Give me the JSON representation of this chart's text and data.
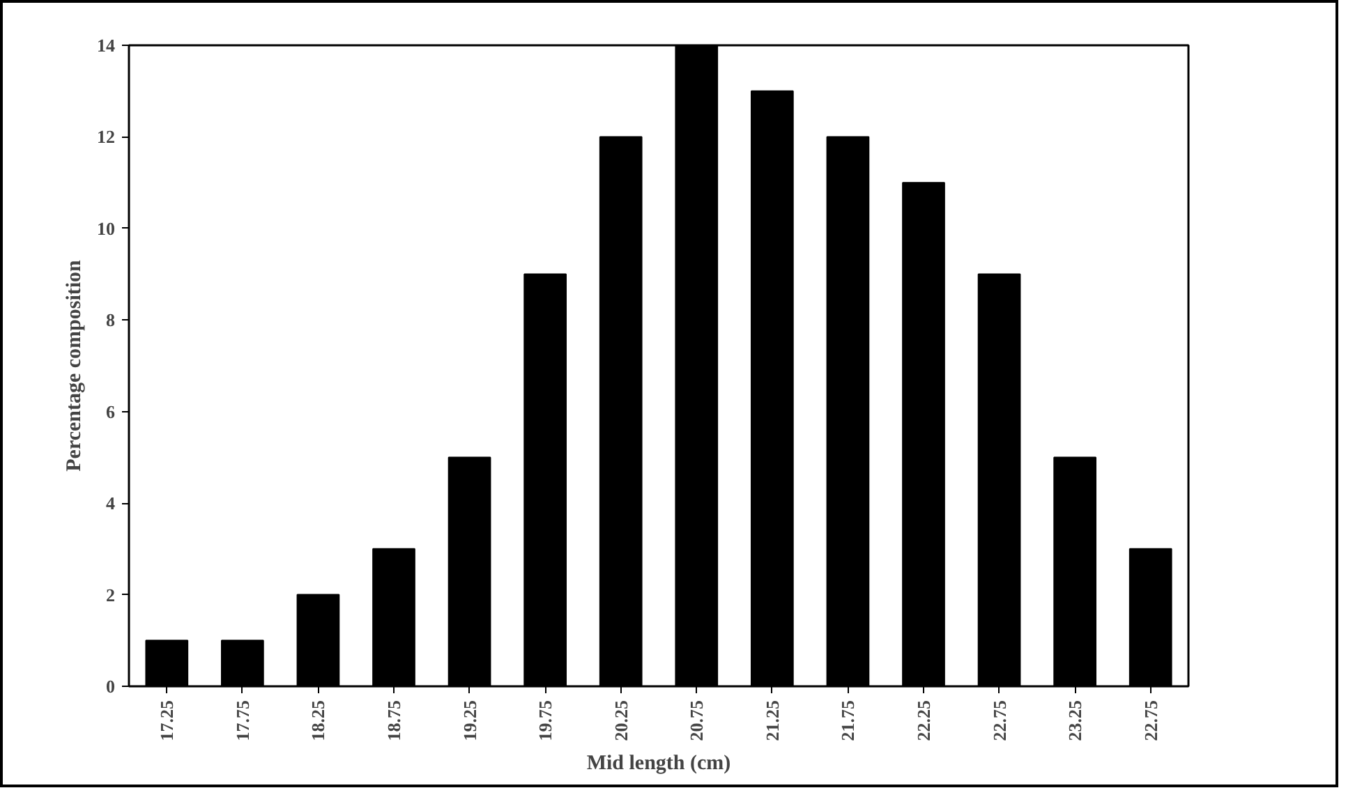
{
  "chart_data": {
    "type": "bar",
    "xlabel": "Mid length (cm)",
    "ylabel": "Percentage composition",
    "categories": [
      "17.25",
      "17.75",
      "18.25",
      "18.75",
      "19.25",
      "19.75",
      "20.25",
      "20.75",
      "21.25",
      "21.75",
      "22.25",
      "22.75",
      "23.25",
      "22.75"
    ],
    "values": [
      1,
      1,
      2,
      3,
      5,
      9,
      12,
      14,
      13,
      12,
      11,
      9,
      5,
      3
    ],
    "color": "#000000",
    "ylim": [
      0,
      14
    ],
    "yticks": [
      0,
      2,
      4,
      6,
      8,
      10,
      12,
      14
    ],
    "grid": false
  }
}
